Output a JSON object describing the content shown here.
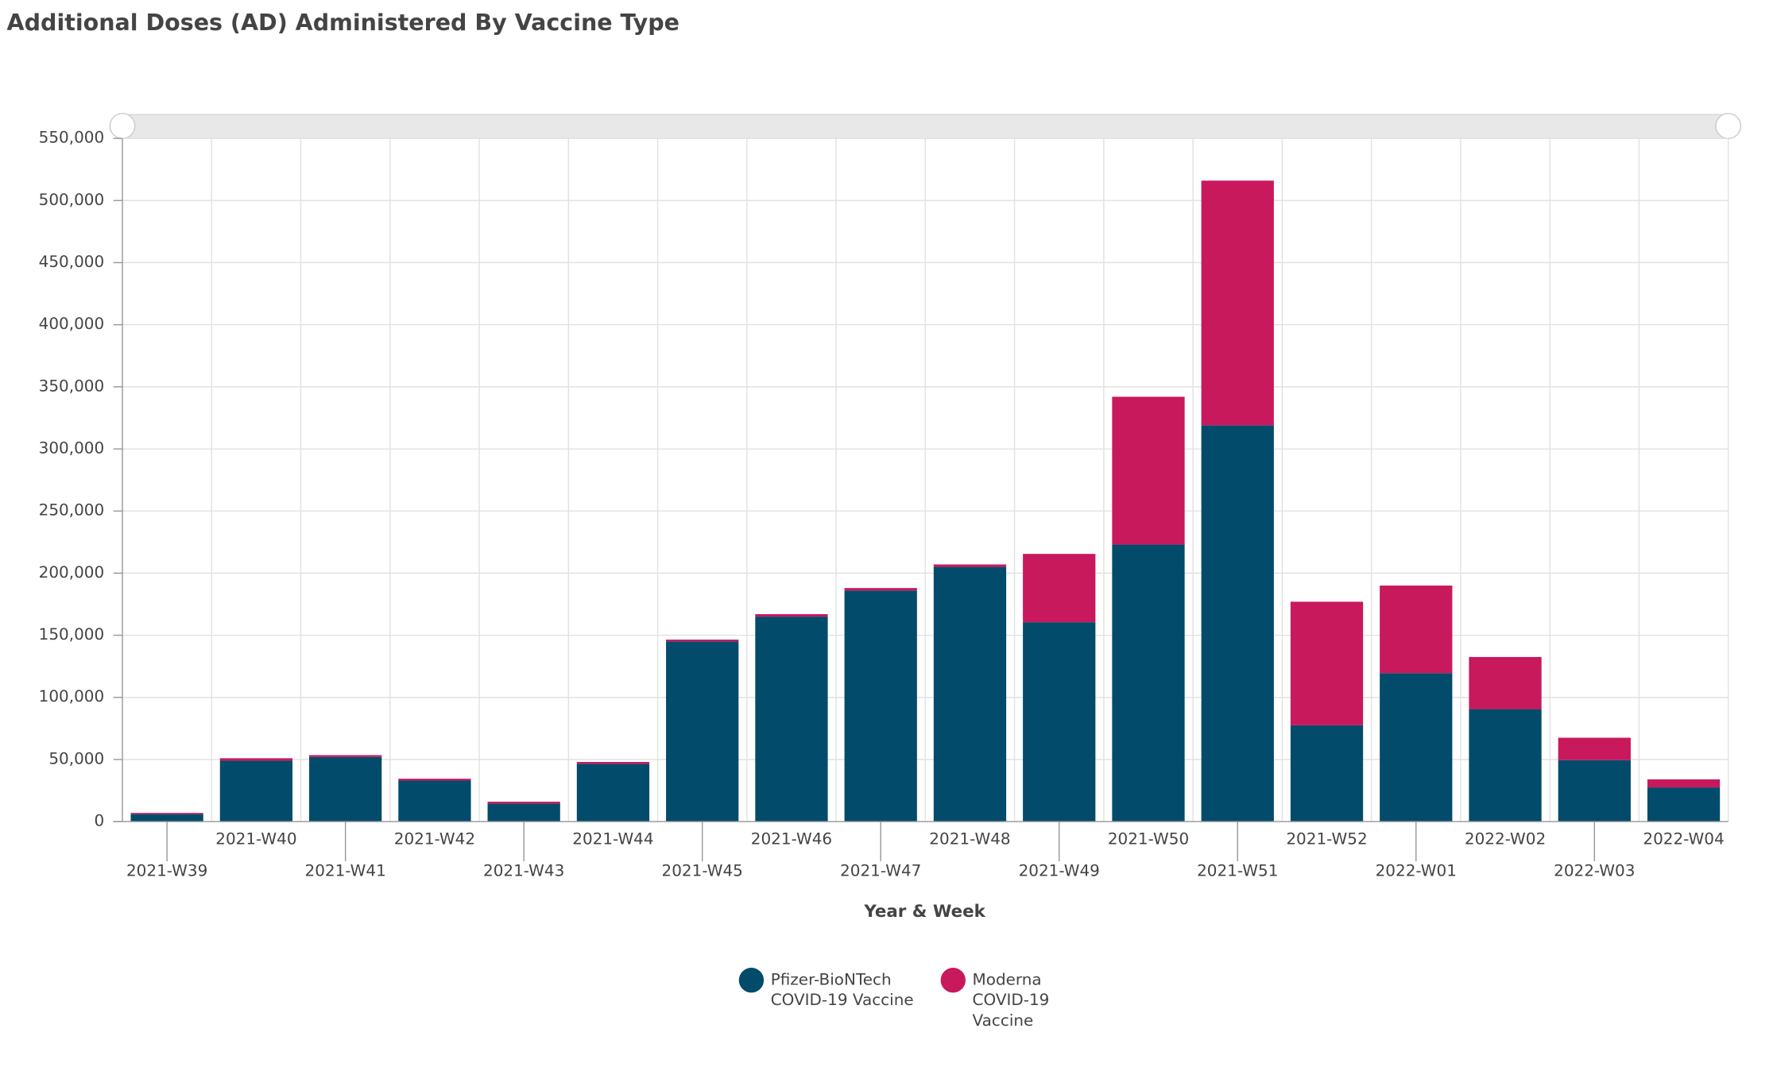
{
  "chart_data": {
    "type": "stacked_bar",
    "title": "Additional Doses (AD) Administered By Vaccine Type",
    "x_label": "Year & Week",
    "categories": [
      "2021-W39",
      "2021-W40",
      "2021-W41",
      "2021-W42",
      "2021-W43",
      "2021-W44",
      "2021-W45",
      "2021-W46",
      "2021-W47",
      "2021-W48",
      "2021-W49",
      "2021-W50",
      "2021-W51",
      "2021-W52",
      "2022-W01",
      "2022-W02",
      "2022-W03",
      "2022-W04"
    ],
    "series": [
      {
        "name": "Pfizer-BioNTech COVID-19 Vaccine",
        "color": "#034b6b",
        "values": [
          6000,
          49000,
          52000,
          33000,
          14500,
          46500,
          145000,
          165000,
          186000,
          205000,
          160500,
          223000,
          319000,
          77500,
          119500,
          90500,
          49500,
          27500
        ]
      },
      {
        "name": "Moderna COVID-19 Vaccine",
        "color": "#c8195c",
        "values": [
          1000,
          2000,
          1500,
          1500,
          1500,
          1500,
          1500,
          2000,
          2000,
          2000,
          55000,
          119000,
          197000,
          99500,
          70500,
          42000,
          18000,
          6500
        ]
      }
    ],
    "ylim": [
      0,
      550000
    ],
    "yticks": [
      0,
      {
        "value": 50000,
        "label": "50,000"
      },
      {
        "value": 100000,
        "label": "100,000"
      },
      {
        "value": 150000,
        "label": "150,000"
      },
      {
        "value": 200000,
        "label": "200,000"
      },
      {
        "value": 250000,
        "label": "250,000"
      },
      {
        "value": 300000,
        "label": "300,000"
      },
      {
        "value": 350000,
        "label": "350,000"
      },
      {
        "value": 400000,
        "label": "400,000"
      },
      {
        "value": 450000,
        "label": "450,000"
      },
      {
        "value": 500000,
        "label": "500,000"
      },
      {
        "value": 550000,
        "label": "550,000"
      }
    ],
    "grid": true,
    "legend": "bottom"
  }
}
